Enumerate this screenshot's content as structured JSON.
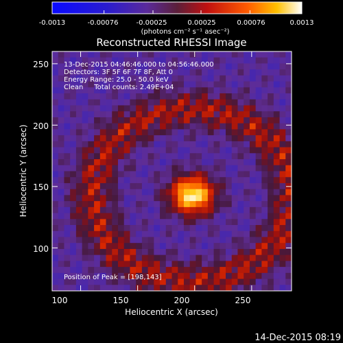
{
  "chart_data": {
    "type": "heatmap",
    "title": "Reconstructed RHESSI Image",
    "xlabel": "Heliocentric X (arcsec)",
    "ylabel": "Heliocentric Y (arcsec)",
    "xlim": [
      75,
      285
    ],
    "ylim": [
      65,
      260
    ],
    "x_ticks": [
      "100",
      "150",
      "200",
      "250"
    ],
    "x_tick_values": [
      100,
      150,
      200,
      250
    ],
    "y_ticks": [
      "100",
      "150",
      "200",
      "250"
    ],
    "y_tick_values": [
      100,
      150,
      200,
      250
    ],
    "colorbar": {
      "min": -0.0013,
      "max": 0.0013,
      "tick_labels": [
        "-0.0013",
        "-0.00076",
        "-0.00025",
        "0.00025",
        "0.00076",
        "0.0013"
      ],
      "tick_values": [
        -0.0013,
        -0.00076,
        -0.00025,
        0.00025,
        0.00076,
        0.0013
      ],
      "unit_label": "(photons cm⁻² s⁻¹ asec⁻²)"
    },
    "annotations": [
      "13-Dec-2015 04:46:46.000 to 04:56:46.000",
      "Detectors: 3F 5F 6F 7F 8F, Att 0",
      "Energy Range: 25.0 - 50.0 keV",
      "Clean     Total counts: 2.49E+04"
    ],
    "peak_label": "Position of Peak = [198,143]",
    "peak": [
      198,
      143
    ],
    "grid": false
  },
  "footer": {
    "timestamp": "14-Dec-2015 08:19"
  }
}
